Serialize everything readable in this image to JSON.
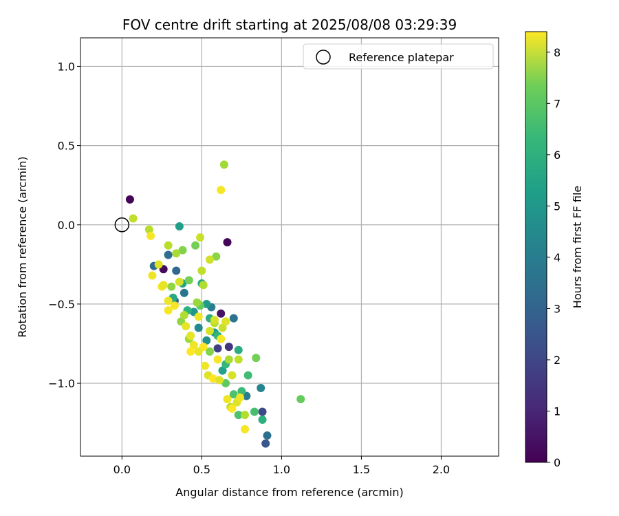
{
  "chart_data": {
    "type": "scatter",
    "title": "FOV centre drift starting at 2025/08/08 03:29:39",
    "xlabel": "Angular distance from reference (arcmin)",
    "ylabel": "Rotation from reference (arcmin)",
    "xlim": [
      -0.26,
      2.36
    ],
    "ylim": [
      -1.46,
      1.18
    ],
    "x_ticks": [
      "0.0",
      "0.5",
      "1.0",
      "1.5",
      "2.0"
    ],
    "x_tick_values": [
      0.0,
      0.5,
      1.0,
      1.5,
      2.0
    ],
    "y_ticks": [
      "1.0",
      "0.5",
      "0.0",
      "−0.5",
      "−1.0"
    ],
    "y_tick_values": [
      1.0,
      0.5,
      0.0,
      -0.5,
      -1.0
    ],
    "grid": true,
    "legend": {
      "placement": "upper right",
      "entries": [
        "Reference platepar"
      ]
    },
    "reference_point": {
      "x": 0.0,
      "y": 0.0,
      "label": "Reference platepar"
    },
    "colorbar": {
      "label": "Hours from first FF file",
      "colormap": "viridis",
      "range": [
        0,
        8.4
      ],
      "ticks": [
        "0",
        "1",
        "2",
        "3",
        "4",
        "5",
        "6",
        "7",
        "8"
      ],
      "tick_values": [
        0,
        1,
        2,
        3,
        4,
        5,
        6,
        7,
        8
      ]
    },
    "series": [
      {
        "columns": [
          "x",
          "y",
          "hours"
        ],
        "points": [
          [
            0.05,
            0.16,
            0.1
          ],
          [
            0.66,
            -0.11,
            0.1
          ],
          [
            0.26,
            -0.28,
            0.2
          ],
          [
            0.62,
            -0.56,
            0.4
          ],
          [
            0.67,
            -0.77,
            1.3
          ],
          [
            0.6,
            -0.78,
            1.6
          ],
          [
            0.88,
            -1.18,
            1.8
          ],
          [
            0.9,
            -1.38,
            2.3
          ],
          [
            0.2,
            -0.26,
            2.8
          ],
          [
            0.29,
            -0.19,
            3.0
          ],
          [
            0.34,
            -0.29,
            2.8
          ],
          [
            0.39,
            -0.43,
            3.3
          ],
          [
            0.33,
            -0.48,
            2.6
          ],
          [
            0.56,
            -0.52,
            3.6
          ],
          [
            0.7,
            -0.59,
            3.2
          ],
          [
            0.78,
            -1.08,
            3.5
          ],
          [
            0.91,
            -1.33,
            3.1
          ],
          [
            0.87,
            -1.03,
            3.8
          ],
          [
            0.48,
            -0.65,
            4.0
          ],
          [
            0.53,
            -0.73,
            4.2
          ],
          [
            0.36,
            -0.01,
            4.7
          ],
          [
            0.73,
            -0.79,
            5.2
          ],
          [
            0.63,
            -0.92,
            4.8
          ],
          [
            0.5,
            -0.37,
            5.0
          ],
          [
            0.53,
            -0.5,
            4.6
          ],
          [
            0.88,
            -1.23,
            5.3
          ],
          [
            0.58,
            -0.68,
            4.6
          ],
          [
            0.45,
            -0.55,
            4.4
          ],
          [
            0.65,
            -0.88,
            5.6
          ],
          [
            0.79,
            -0.95,
            5.8
          ],
          [
            0.83,
            -1.18,
            5.9
          ],
          [
            0.75,
            -1.05,
            5.7
          ],
          [
            0.7,
            -1.07,
            6.0
          ],
          [
            0.41,
            -0.54,
            5.4
          ],
          [
            0.32,
            -0.46,
            5.1
          ],
          [
            0.38,
            -0.37,
            4.9
          ],
          [
            0.55,
            -0.59,
            5.2
          ],
          [
            0.6,
            -0.7,
            5.5
          ],
          [
            0.73,
            -1.2,
            6.0
          ],
          [
            1.12,
            -1.1,
            6.4
          ],
          [
            0.84,
            -0.84,
            6.6
          ],
          [
            0.65,
            -1.0,
            6.3
          ],
          [
            0.46,
            -0.13,
            6.6
          ],
          [
            0.38,
            -0.16,
            6.8
          ],
          [
            0.59,
            -0.2,
            6.9
          ],
          [
            0.42,
            -0.35,
            6.6
          ],
          [
            0.49,
            -0.51,
            6.4
          ],
          [
            0.64,
            0.38,
            7.2
          ],
          [
            0.34,
            -0.18,
            7.3
          ],
          [
            0.29,
            -0.13,
            7.5
          ],
          [
            0.17,
            -0.03,
            7.5
          ],
          [
            0.07,
            0.04,
            7.6
          ],
          [
            0.49,
            -0.08,
            7.7
          ],
          [
            0.5,
            -0.29,
            7.6
          ],
          [
            0.51,
            -0.38,
            7.4
          ],
          [
            0.55,
            -0.22,
            7.8
          ],
          [
            0.37,
            -0.61,
            7.0
          ],
          [
            0.42,
            -0.72,
            7.2
          ],
          [
            0.58,
            -0.62,
            7.5
          ],
          [
            0.67,
            -0.85,
            7.3
          ],
          [
            0.77,
            -1.2,
            7.4
          ],
          [
            0.68,
            -1.15,
            7.6
          ],
          [
            0.55,
            -0.8,
            6.8
          ],
          [
            0.47,
            -0.49,
            7.1
          ],
          [
            0.31,
            -0.39,
            7.0
          ],
          [
            0.39,
            -0.57,
            7.4
          ],
          [
            0.63,
            -0.65,
            7.7
          ],
          [
            0.73,
            -0.85,
            7.6
          ],
          [
            0.62,
            0.22,
            8.3
          ],
          [
            0.18,
            -0.07,
            8.3
          ],
          [
            0.19,
            -0.32,
            8.2
          ],
          [
            0.23,
            -0.25,
            8.0
          ],
          [
            0.25,
            -0.39,
            8.3
          ],
          [
            0.29,
            -0.48,
            8.2
          ],
          [
            0.29,
            -0.54,
            8.3
          ],
          [
            0.43,
            -0.7,
            8.1
          ],
          [
            0.51,
            -0.77,
            8.4
          ],
          [
            0.52,
            -0.89,
            8.2
          ],
          [
            0.54,
            -0.95,
            8.0
          ],
          [
            0.6,
            -0.85,
            8.3
          ],
          [
            0.66,
            -1.1,
            8.2
          ],
          [
            0.72,
            -1.12,
            8.0
          ],
          [
            0.77,
            -1.29,
            8.3
          ],
          [
            0.69,
            -1.16,
            8.4
          ],
          [
            0.55,
            -0.67,
            7.9
          ],
          [
            0.48,
            -0.8,
            8.1
          ],
          [
            0.45,
            -0.76,
            8.2
          ],
          [
            0.57,
            -0.97,
            8.4
          ],
          [
            0.61,
            -0.98,
            8.0
          ],
          [
            0.36,
            -0.36,
            7.9
          ],
          [
            0.26,
            -0.38,
            8.1
          ],
          [
            0.65,
            -0.61,
            8.0
          ],
          [
            0.48,
            -0.58,
            8.2
          ],
          [
            0.33,
            -0.51,
            8.3
          ],
          [
            0.4,
            -0.64,
            8.1
          ],
          [
            0.58,
            -0.6,
            7.9
          ],
          [
            0.69,
            -0.95,
            7.9
          ],
          [
            0.74,
            -1.09,
            8.2
          ],
          [
            0.62,
            -0.72,
            8.3
          ],
          [
            0.43,
            -0.8,
            8.4
          ]
        ]
      }
    ]
  }
}
